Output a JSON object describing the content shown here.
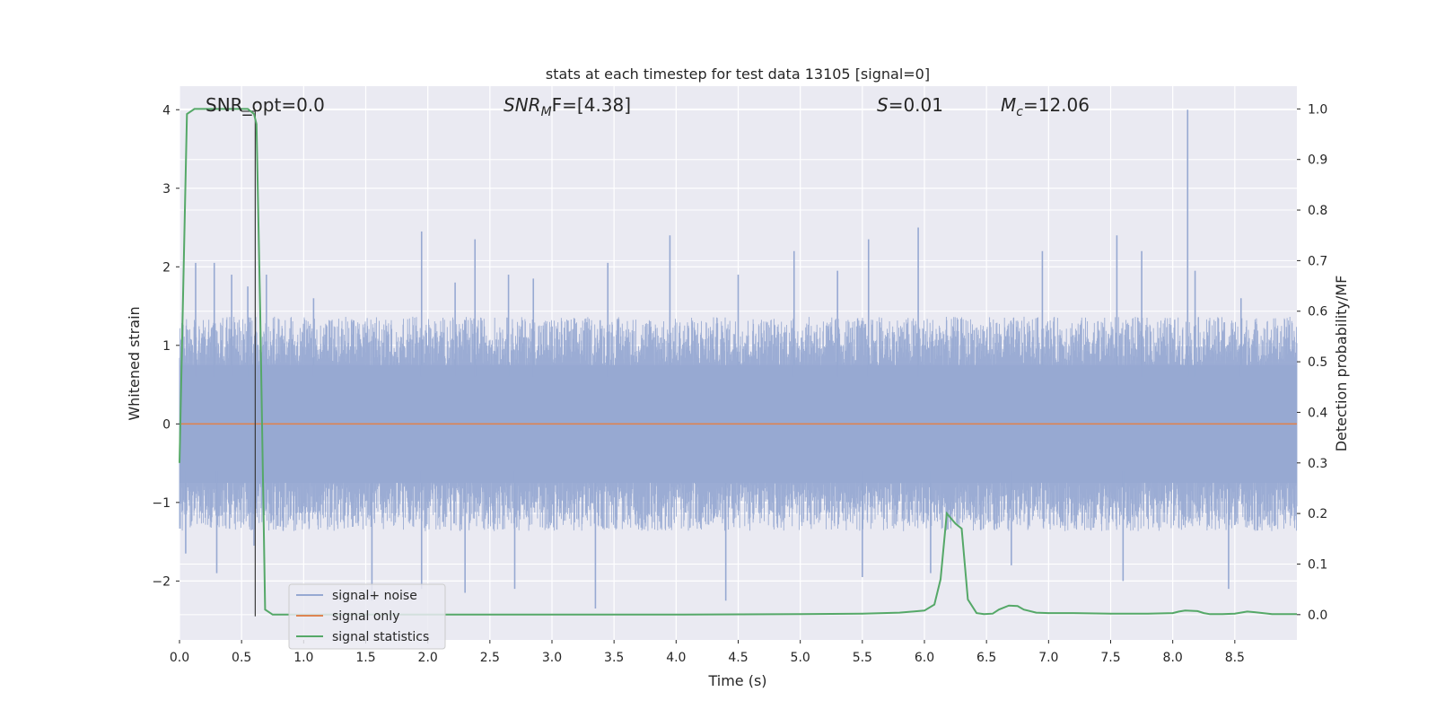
{
  "chart_data": {
    "type": "line",
    "title": "stats at each timestep for test data 13105 [signal=0]",
    "xlabel": "Time (s)",
    "ylabel": "Whitened strain",
    "y2label": "Detection probability/MF",
    "xlim": [
      0,
      9.0
    ],
    "ylim": [
      -2.75,
      4.3
    ],
    "y2lim": [
      -0.05,
      1.045
    ],
    "xticks": [
      "0.0",
      "0.5",
      "1.0",
      "1.5",
      "2.0",
      "2.5",
      "3.0",
      "3.5",
      "4.0",
      "4.5",
      "5.0",
      "5.5",
      "6.0",
      "6.5",
      "7.0",
      "7.5",
      "8.0",
      "8.5"
    ],
    "yticks": [
      "−2",
      "−1",
      "0",
      "1",
      "2",
      "3",
      "4"
    ],
    "y2ticks": [
      "0.0",
      "0.1",
      "0.2",
      "0.3",
      "0.4",
      "0.5",
      "0.6",
      "0.7",
      "0.8",
      "0.9",
      "1.0"
    ],
    "grid": true,
    "legend_position": "lower-left",
    "annotations": {
      "snr_opt": "SNR_opt=0.0",
      "snr_mf_var": "SNR",
      "snr_mf_sub": "M",
      "snr_mf_rest": "F=[4.38]",
      "s_var": "S",
      "s_rest": "=0.01",
      "mc_var": "M",
      "mc_sub": "c",
      "mc_rest": "=12.06"
    },
    "marker_time": 0.61,
    "series": [
      {
        "name": "signal+ noise",
        "color": "#97a9d2",
        "description_values": "dense noise band approx ±1.3, peaks to 4.0 near t=8.12",
        "envelope_hi": 1.3,
        "envelope_lo": -1.3,
        "spikes": [
          [
            0.13,
            2.05
          ],
          [
            0.28,
            2.05
          ],
          [
            0.42,
            1.9
          ],
          [
            0.55,
            1.75
          ],
          [
            0.7,
            1.9
          ],
          [
            1.08,
            1.6
          ],
          [
            1.95,
            2.45
          ],
          [
            2.22,
            1.8
          ],
          [
            2.38,
            2.35
          ],
          [
            2.65,
            1.9
          ],
          [
            2.85,
            1.85
          ],
          [
            3.45,
            2.05
          ],
          [
            3.95,
            2.4
          ],
          [
            4.5,
            1.9
          ],
          [
            4.95,
            2.2
          ],
          [
            5.3,
            1.95
          ],
          [
            5.55,
            2.35
          ],
          [
            5.95,
            2.5
          ],
          [
            6.95,
            2.2
          ],
          [
            7.55,
            2.4
          ],
          [
            7.75,
            2.2
          ],
          [
            8.12,
            4.0
          ],
          [
            8.18,
            1.95
          ],
          [
            8.55,
            1.6
          ]
        ],
        "dips": [
          [
            0.05,
            -1.65
          ],
          [
            0.3,
            -1.9
          ],
          [
            0.6,
            -1.55
          ],
          [
            1.55,
            -2.25
          ],
          [
            1.95,
            -2.1
          ],
          [
            2.3,
            -2.15
          ],
          [
            2.7,
            -2.1
          ],
          [
            3.35,
            -2.35
          ],
          [
            4.4,
            -2.25
          ],
          [
            5.5,
            -1.95
          ],
          [
            6.05,
            -1.9
          ],
          [
            6.7,
            -1.8
          ],
          [
            7.6,
            -2.0
          ],
          [
            8.45,
            -2.1
          ]
        ]
      },
      {
        "name": "signal only",
        "color": "#dd8452",
        "x": [
          0,
          9.0
        ],
        "y": [
          0,
          0
        ]
      },
      {
        "name": "signal statistics",
        "color": "#55a868",
        "axis": "right",
        "x": [
          0,
          0.06,
          0.12,
          0.2,
          0.3,
          0.4,
          0.5,
          0.55,
          0.6,
          0.62,
          0.65,
          0.69,
          0.75,
          0.8,
          1.0,
          1.5,
          2.0,
          3.0,
          4.0,
          5.0,
          5.5,
          5.8,
          6.0,
          6.08,
          6.13,
          6.18,
          6.25,
          6.3,
          6.35,
          6.42,
          6.48,
          6.55,
          6.6,
          6.68,
          6.75,
          6.8,
          6.9,
          7.0,
          7.2,
          7.5,
          7.8,
          8.0,
          8.05,
          8.1,
          8.2,
          8.25,
          8.3,
          8.4,
          8.5,
          8.6,
          8.65,
          8.8,
          9.0
        ],
        "y": [
          0.3,
          0.99,
          1.0,
          1.0,
          1.0,
          1.0,
          1.0,
          1.0,
          0.99,
          0.97,
          0.6,
          0.01,
          0.0,
          0.0,
          0.0,
          0.0,
          0.0,
          0.0,
          0.0,
          0.001,
          0.002,
          0.004,
          0.008,
          0.02,
          0.07,
          0.2,
          0.18,
          0.17,
          0.03,
          0.003,
          0.001,
          0.002,
          0.01,
          0.018,
          0.017,
          0.01,
          0.004,
          0.003,
          0.003,
          0.002,
          0.002,
          0.003,
          0.006,
          0.008,
          0.007,
          0.003,
          0.001,
          0.001,
          0.002,
          0.006,
          0.005,
          0.001,
          0.001
        ]
      }
    ]
  }
}
